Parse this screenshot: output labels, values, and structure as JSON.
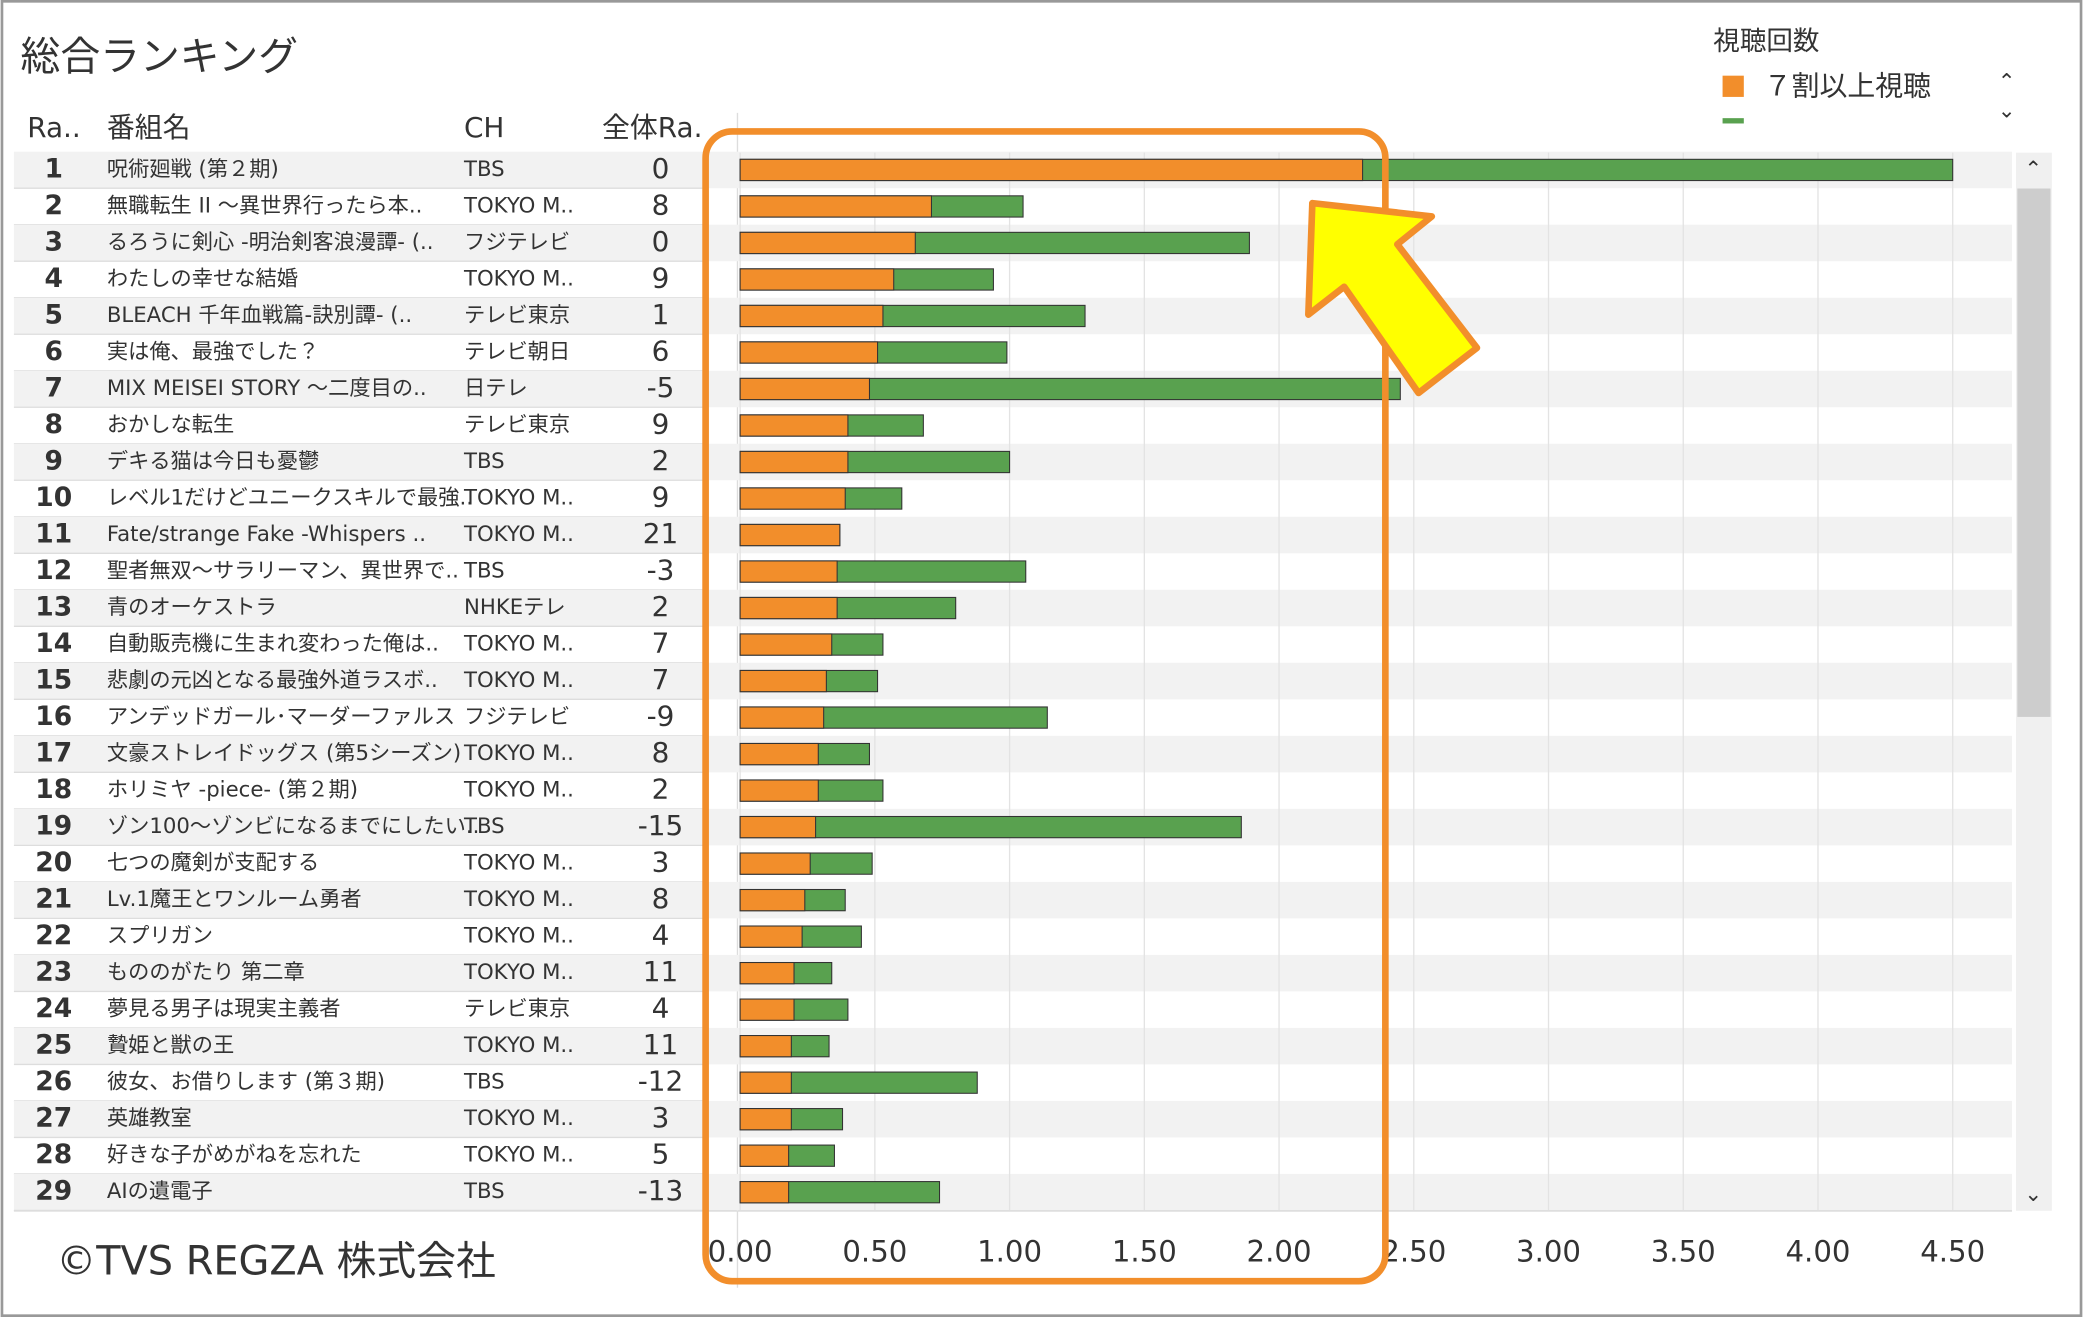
{
  "title": "総合ランキング",
  "legend_title": "視聴回数",
  "copyright": "©TVS REGZA 株式会社",
  "chart_data": {
    "type": "bar",
    "orientation": "horizontal",
    "columns": [
      "Ra..",
      "番組名",
      "CH",
      "全体Ra."
    ],
    "ranks": [
      1,
      2,
      3,
      4,
      5,
      6,
      7,
      8,
      9,
      10,
      11,
      12,
      13,
      14,
      15,
      16,
      17,
      18,
      19,
      20,
      21,
      22,
      23,
      24,
      25,
      26,
      27,
      28,
      29
    ],
    "categories": [
      "呪術廻戦 (第２期)",
      "無職転生 II ～異世界行ったら本..",
      "るろうに剣心 -明治剣客浪漫譚- (..",
      "わたしの幸せな結婚",
      "BLEACH 千年血戦篇-訣別譚- (..",
      "実は俺、最強でした？",
      "MIX MEISEI STORY ～二度目の..",
      "おかしな転生",
      "デキる猫は今日も憂鬱",
      "レベル1だけどユニークスキルで最強..",
      "Fate/strange Fake -Whispers ..",
      "聖者無双～サラリーマン、異世界で..",
      "青のオーケストラ",
      "自動販売機に生まれ変わった俺は..",
      "悲劇の元凶となる最強外道ラスボ..",
      "アンデッドガール･マーダーファルス",
      "文豪ストレイドッグス (第5シーズン)",
      "ホリミヤ -piece- (第２期)",
      "ゾン100～ゾンビになるまでにしたい..",
      "七つの魔剣が支配する",
      "Lv.1魔王とワンルーム勇者",
      "スプリガン",
      "もののがたり 第二章",
      "夢見る男子は現実主義者",
      "贄姫と獣の王",
      "彼女、お借りします (第３期)",
      "英雄教室",
      "好きな子がめがねを忘れた",
      "AIの遺電子"
    ],
    "channels": [
      "TBS",
      "TOKYO M..",
      "フジテレビ",
      "TOKYO M..",
      "テレビ東京",
      "テレビ朝日",
      "日テレ",
      "テレビ東京",
      "TBS",
      "TOKYO M..",
      "TOKYO M..",
      "TBS",
      "NHKEテレ",
      "TOKYO M..",
      "TOKYO M..",
      "フジテレビ",
      "TOKYO M..",
      "TOKYO M..",
      "TBS",
      "TOKYO M..",
      "TOKYO M..",
      "TOKYO M..",
      "TOKYO M..",
      "テレビ東京",
      "TOKYO M..",
      "TBS",
      "TOKYO M..",
      "TOKYO M..",
      "TBS"
    ],
    "overall_rank": [
      0,
      8,
      0,
      9,
      1,
      6,
      -5,
      9,
      2,
      9,
      21,
      -3,
      2,
      7,
      7,
      -9,
      8,
      2,
      -15,
      3,
      8,
      4,
      11,
      4,
      11,
      -12,
      3,
      5,
      -13
    ],
    "series": [
      {
        "name": "７割以上視聴",
        "color": "#f28e2b",
        "values": [
          2.31,
          0.71,
          0.65,
          0.57,
          0.53,
          0.51,
          0.48,
          0.4,
          0.4,
          0.39,
          0.37,
          0.36,
          0.36,
          0.34,
          0.32,
          0.31,
          0.29,
          0.29,
          0.28,
          0.26,
          0.24,
          0.23,
          0.2,
          0.2,
          0.19,
          0.19,
          0.19,
          0.18,
          0.18
        ]
      },
      {
        "color": "#59a14f",
        "values": [
          4.5,
          1.05,
          1.89,
          0.94,
          1.28,
          0.99,
          2.45,
          0.68,
          1.0,
          0.6,
          0.37,
          1.06,
          0.8,
          0.53,
          0.51,
          1.14,
          0.48,
          0.53,
          1.86,
          0.49,
          0.39,
          0.45,
          0.34,
          0.4,
          0.33,
          0.88,
          0.38,
          0.35,
          0.74
        ]
      }
    ],
    "xlim": [
      0,
      4.72
    ],
    "xticks": [
      {
        "value": 0,
        "label": "0.00"
      },
      {
        "value": 0.5,
        "label": "0.50"
      },
      {
        "value": 1,
        "label": "1.00"
      },
      {
        "value": 1.5,
        "label": "1.50"
      },
      {
        "value": 2,
        "label": "2.00"
      },
      {
        "value": 2.5,
        "label": "2.50"
      },
      {
        "value": 3,
        "label": "3.00"
      },
      {
        "value": 3.5,
        "label": "3.50"
      },
      {
        "value": 4,
        "label": "4.00"
      },
      {
        "value": 4.5,
        "label": "4.50"
      }
    ],
    "grid": true
  }
}
